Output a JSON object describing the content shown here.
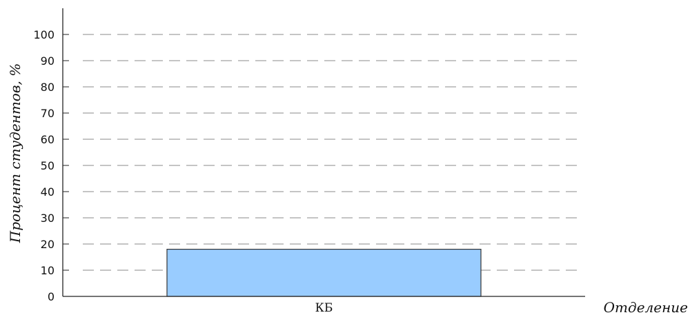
{
  "chart_data": {
    "type": "bar",
    "categories": [
      "КБ"
    ],
    "values": [
      18
    ],
    "xlabel": "Отделение",
    "ylabel": "Процент студентов, %",
    "ylim": [
      0,
      100
    ],
    "yticks": [
      0,
      10,
      20,
      30,
      40,
      50,
      60,
      70,
      80,
      90,
      100
    ],
    "grid": true,
    "colors": {
      "bar_fill": "#99ccff",
      "bar_stroke": "#333333",
      "grid": "#888888",
      "axis": "#222222"
    }
  }
}
